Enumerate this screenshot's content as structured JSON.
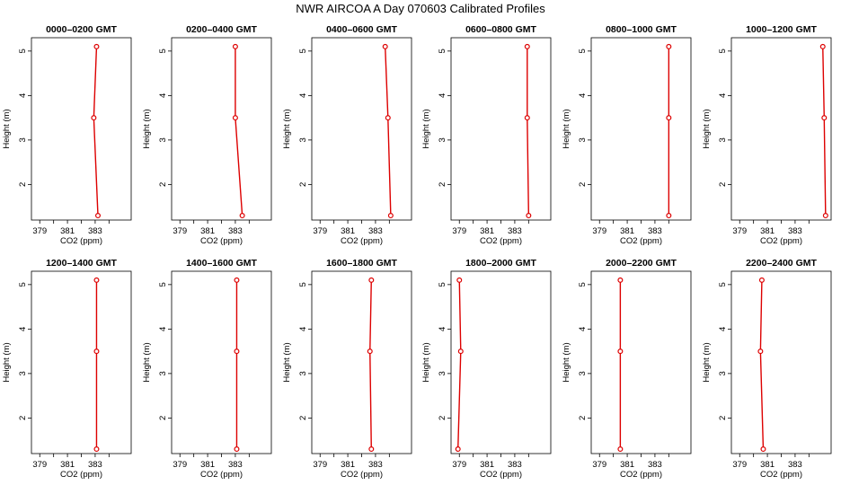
{
  "title": "NWR AIRCOA A  Day 070603  Calibrated Profiles",
  "colors": {
    "series": "#dd0000",
    "axis": "#000000",
    "background": "#ffffff"
  },
  "chart_data": {
    "type": "line",
    "xlabel": "CO2 (ppm)",
    "ylabel": "Height (m)",
    "xlim": [
      378.4,
      385.6
    ],
    "ylim": [
      1.2,
      5.3
    ],
    "xticks": [
      379,
      380,
      381,
      382,
      383,
      384
    ],
    "xtick_labels": [
      "379",
      "",
      "381",
      "",
      "383",
      ""
    ],
    "yticks": [
      2,
      3,
      4,
      5
    ],
    "ytick_labels": [
      "2",
      "3",
      "4",
      "5"
    ],
    "grid": false,
    "legend": "none",
    "panels": [
      {
        "title": "0000–0200 GMT",
        "heights": [
          1.3,
          3.5,
          5.1
        ],
        "co2": [
          383.2,
          382.9,
          383.1
        ]
      },
      {
        "title": "0200–0400 GMT",
        "heights": [
          1.3,
          3.5,
          5.1
        ],
        "co2": [
          383.5,
          383.0,
          383.0
        ]
      },
      {
        "title": "0400–0600 GMT",
        "heights": [
          1.3,
          3.5,
          5.1
        ],
        "co2": [
          384.1,
          383.9,
          383.7
        ]
      },
      {
        "title": "0600–0800 GMT",
        "heights": [
          1.3,
          3.5,
          5.1
        ],
        "co2": [
          384.0,
          383.9,
          383.9
        ]
      },
      {
        "title": "0800–1000 GMT",
        "heights": [
          1.3,
          3.5,
          5.1
        ],
        "co2": [
          384.0,
          384.0,
          384.0
        ]
      },
      {
        "title": "1000–1200 GMT",
        "heights": [
          1.3,
          3.5,
          5.1
        ],
        "co2": [
          385.2,
          385.1,
          385.0
        ]
      },
      {
        "title": "1200–1400 GMT",
        "heights": [
          1.3,
          3.5,
          5.1
        ],
        "co2": [
          383.1,
          383.1,
          383.1
        ]
      },
      {
        "title": "1400–1600 GMT",
        "heights": [
          1.3,
          3.5,
          5.1
        ],
        "co2": [
          383.1,
          383.1,
          383.1
        ]
      },
      {
        "title": "1600–1800 GMT",
        "heights": [
          1.3,
          3.5,
          5.1
        ],
        "co2": [
          382.7,
          382.6,
          382.7
        ]
      },
      {
        "title": "1800–2000 GMT",
        "heights": [
          1.3,
          3.5,
          5.1
        ],
        "co2": [
          378.9,
          379.1,
          379.0
        ]
      },
      {
        "title": "2000–2200 GMT",
        "heights": [
          1.3,
          3.5,
          5.1
        ],
        "co2": [
          380.5,
          380.5,
          380.5
        ]
      },
      {
        "title": "2200–2400 GMT",
        "heights": [
          1.3,
          3.5,
          5.1
        ],
        "co2": [
          380.7,
          380.5,
          380.6
        ]
      }
    ]
  }
}
